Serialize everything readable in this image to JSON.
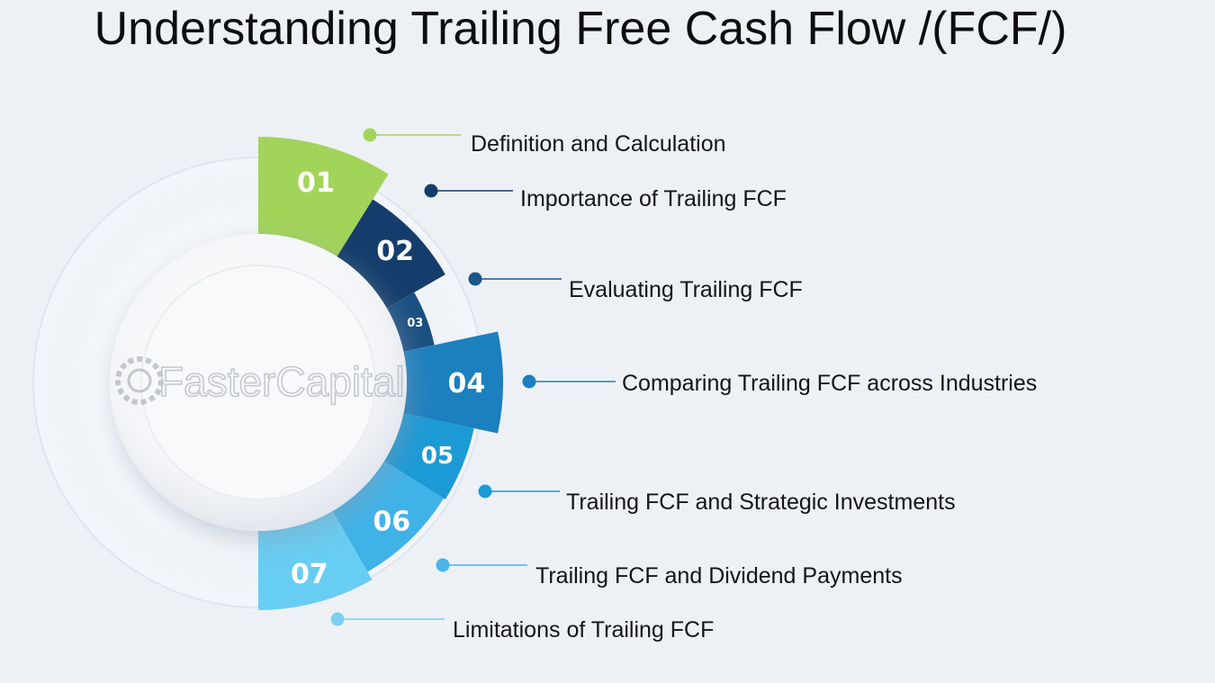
{
  "title": "Understanding Trailing Free Cash Flow /(FCF/)",
  "watermark": "FasterCapital",
  "steps": [
    {
      "number": "01",
      "label": "Definition and Calculation",
      "color": "#a2d45a",
      "dot": "#a2d45a"
    },
    {
      "number": "02",
      "label": "Importance of Trailing FCF",
      "color": "#143d6b",
      "dot": "#143d6b"
    },
    {
      "number": "03",
      "label": "Evaluating Trailing FCF",
      "color": "#1a4f82",
      "dot": "#1c5489"
    },
    {
      "number": "04",
      "label": "Comparing Trailing FCF across Industries",
      "color": "#1c7fbe",
      "dot": "#1c7fbe"
    },
    {
      "number": "05",
      "label": "Trailing FCF and Strategic Investments",
      "color": "#1b9ad6",
      "dot": "#1b9ad6"
    },
    {
      "number": "06",
      "label": "Trailing FCF and Dividend Payments",
      "color": "#3fb2e8",
      "dot": "#4ab4e6"
    },
    {
      "number": "07",
      "label": "Limitations of Trailing FCF",
      "color": "#68cdf2",
      "dot": "#79d1f1"
    }
  ]
}
